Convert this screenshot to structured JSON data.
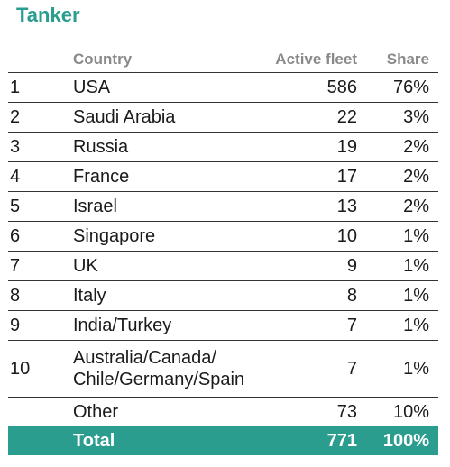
{
  "title": "Tanker",
  "headers": {
    "country": "Country",
    "fleet": "Active fleet",
    "share": "Share"
  },
  "rows": [
    {
      "rank": "1",
      "country": "USA",
      "fleet": "586",
      "share": "76%"
    },
    {
      "rank": "2",
      "country": "Saudi Arabia",
      "fleet": "22",
      "share": "3%"
    },
    {
      "rank": "3",
      "country": "Russia",
      "fleet": "19",
      "share": "2%"
    },
    {
      "rank": "4",
      "country": "France",
      "fleet": "17",
      "share": "2%"
    },
    {
      "rank": "5",
      "country": "Israel",
      "fleet": "13",
      "share": "2%"
    },
    {
      "rank": "6",
      "country": "Singapore",
      "fleet": "10",
      "share": "1%"
    },
    {
      "rank": "7",
      "country": "UK",
      "fleet": "9",
      "share": "1%"
    },
    {
      "rank": "8",
      "country": "Italy",
      "fleet": "8",
      "share": "1%"
    },
    {
      "rank": "9",
      "country": "India/Turkey",
      "fleet": "7",
      "share": "1%"
    },
    {
      "rank": "10",
      "country_line1": "Australia/Canada/",
      "country_line2": "Chile/Germany/Spain",
      "fleet": "7",
      "share": "1%"
    }
  ],
  "other": {
    "country": "Other",
    "fleet": "73",
    "share": "10%"
  },
  "total": {
    "label": "Total",
    "fleet": "771",
    "share": "100%"
  },
  "colors": {
    "accent": "#2a9d8f"
  }
}
